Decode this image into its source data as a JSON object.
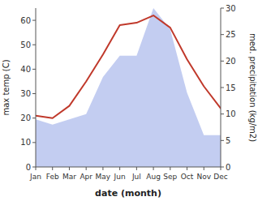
{
  "chart_data": {
    "type": "line",
    "categories": [
      "Jan",
      "Feb",
      "Mar",
      "Apr",
      "May",
      "Jun",
      "Jul",
      "Aug",
      "Sep",
      "Oct",
      "Nov",
      "Dec"
    ],
    "xlabel": "date (month)",
    "ylabel": "max temp (C)",
    "y2label": "med. precipitation (kg/m2)",
    "series": [
      {
        "type": "area",
        "color": "#b8c4ee",
        "axis": "y2",
        "values": [
          9,
          8,
          9,
          10,
          17,
          21,
          21,
          30,
          26,
          14,
          6,
          6
        ]
      },
      {
        "type": "line",
        "color": "#c0392b",
        "values": [
          21,
          20,
          25,
          35,
          46,
          58,
          59,
          62,
          57,
          44,
          33,
          24
        ]
      }
    ],
    "ylim": [
      0,
      65
    ],
    "yticks": [
      0,
      10,
      20,
      30,
      40,
      50,
      60
    ],
    "y2lim": [
      0,
      30
    ],
    "y2ticks": [
      0,
      5,
      10,
      15,
      20,
      25,
      30
    ],
    "grid": false
  }
}
